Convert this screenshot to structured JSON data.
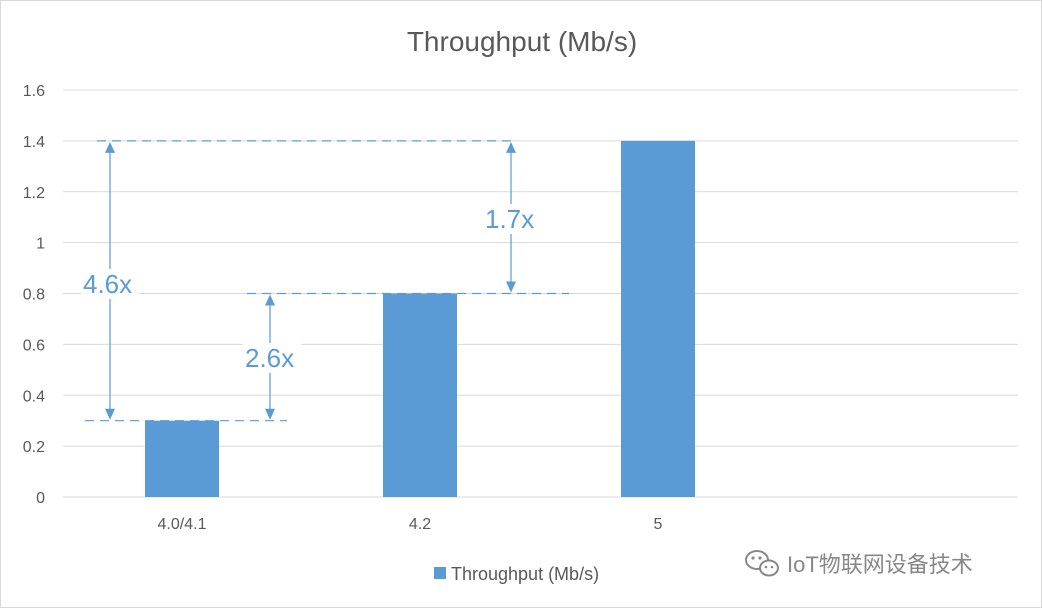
{
  "chart_data": {
    "type": "bar",
    "title": "Throughput (Mb/s)",
    "categories": [
      "4.0/4.1",
      "4.2",
      "5"
    ],
    "series": [
      {
        "name": "Throughput (Mb/s)",
        "values": [
          0.3,
          0.8,
          1.4
        ]
      }
    ],
    "ylim": [
      0,
      1.6
    ],
    "yticks": [
      0,
      0.2,
      0.4,
      0.6,
      0.8,
      1,
      1.2,
      1.4,
      1.6
    ],
    "ytick_labels": [
      "0",
      "0.2",
      "0.4",
      "0.6",
      "0.8",
      "1",
      "1.2",
      "1.4",
      "1.6"
    ],
    "grid": true,
    "legend_position": "bottom",
    "annotations": [
      {
        "label": "4.6x",
        "from_value": 0.3,
        "to_value": 1.4
      },
      {
        "label": "2.6x",
        "from_value": 0.3,
        "to_value": 0.8
      },
      {
        "label": "1.7x",
        "from_value": 0.8,
        "to_value": 1.4
      }
    ],
    "colors": {
      "bar": "#5b9bd5",
      "annotation": "#5b9bd5",
      "grid": "#d9d9d9",
      "text": "#595959"
    }
  },
  "watermark": {
    "text": "IoT物联网设备技术",
    "icon": "wechat-icon"
  }
}
